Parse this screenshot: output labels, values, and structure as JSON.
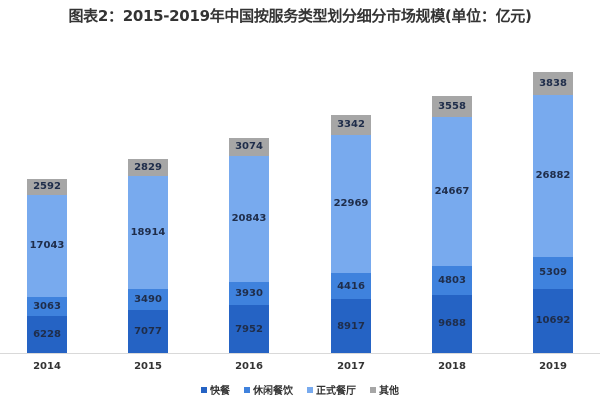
{
  "title": "图表2：2015-2019年中国按服务类型划分细分市场规模(单位：亿元)",
  "chart_data": {
    "type": "bar",
    "stacked": true,
    "title": "图表2：2015-2019年中国按服务类型划分细分市场规模(单位：亿元)",
    "xlabel": "",
    "ylabel": "",
    "unit": "亿元",
    "categories": [
      "2014",
      "2015",
      "2016",
      "2017",
      "2018",
      "2019"
    ],
    "series": [
      {
        "name": "快餐",
        "color": "#2563c4",
        "values": [
          6228,
          7077,
          7952,
          8917,
          9688,
          10692
        ]
      },
      {
        "name": "休闲餐饮",
        "color": "#3f82dd",
        "values": [
          3063,
          3490,
          3930,
          4416,
          4803,
          5309
        ]
      },
      {
        "name": "正式餐厅",
        "color": "#78aaee",
        "values": [
          17043,
          18914,
          20843,
          22969,
          24667,
          26882
        ]
      },
      {
        "name": "其他",
        "color": "#a6a6a6",
        "values": [
          2592,
          2829,
          3074,
          3342,
          3558,
          3838
        ]
      }
    ],
    "grid": false,
    "legend_position": "bottom"
  }
}
